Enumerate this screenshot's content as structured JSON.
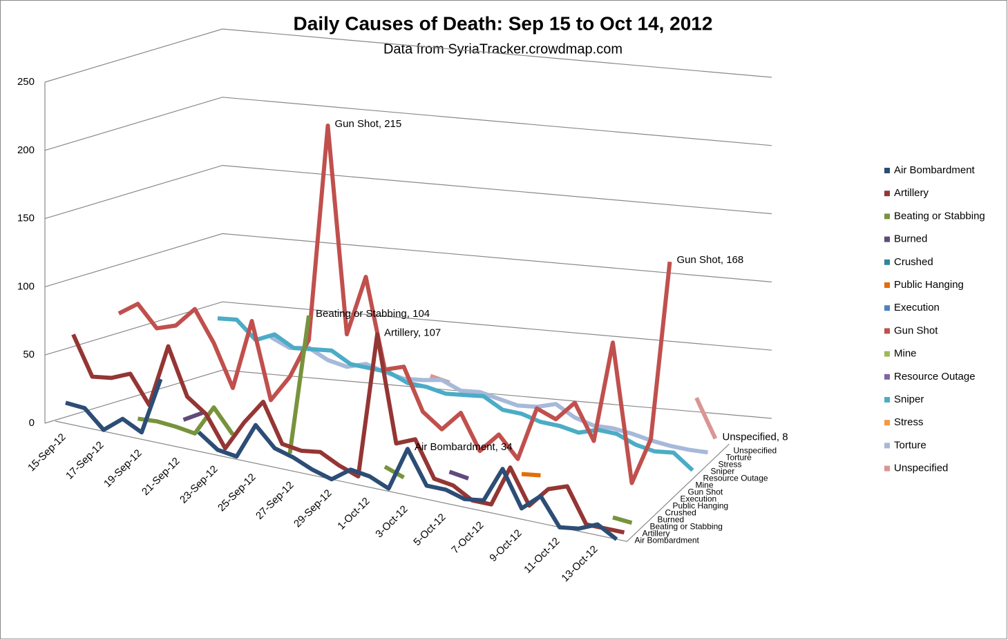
{
  "chart_data": {
    "type": "line3d",
    "title": "Daily Causes of Death: Sep 15 to Oct 14, 2012",
    "subtitle": "Data from SyriaTracker.crowdmap.com",
    "categories": [
      "15-Sep-12",
      null,
      "17-Sep-12",
      null,
      "19-Sep-12",
      null,
      "21-Sep-12",
      null,
      "23-Sep-12",
      null,
      "25-Sep-12",
      null,
      "27-Sep-12",
      null,
      "29-Sep-12",
      null,
      "1-Oct-12",
      null,
      "3-Oct-12",
      null,
      "5-Oct-12",
      null,
      "7-Oct-12",
      null,
      "9-Oct-12",
      null,
      "11-Oct-12",
      null,
      "13-Oct-12",
      null
    ],
    "ylim": [
      0,
      250
    ],
    "yticks": [
      0,
      50,
      100,
      150,
      200,
      250
    ],
    "grid": true,
    "series": [
      {
        "name": "Air Bombardment",
        "color": "#2c4d75",
        "values": [
          15,
          14,
          1,
          12,
          5,
          47,
          null,
          14,
          4,
          2,
          28,
          14,
          10,
          4,
          0,
          10,
          8,
          2,
          34,
          10,
          10,
          6,
          8,
          34,
          8,
          20,
          0,
          2,
          8,
          0
        ],
        "value_labels": [
          null,
          null,
          null,
          null,
          null,
          null,
          null,
          null,
          null,
          null,
          null,
          null,
          null,
          null,
          null,
          null,
          null,
          null,
          "Air Bombardment, 34",
          null,
          null,
          null,
          null,
          null,
          null,
          null,
          null,
          null,
          null,
          null
        ]
      },
      {
        "name": "Artillery",
        "color": "#943634",
        "values": [
          60,
          32,
          34,
          40,
          20,
          66,
          32,
          22,
          0,
          22,
          40,
          12,
          10,
          12,
          5,
          0,
          107,
          30,
          36,
          10,
          8,
          0,
          0,
          30,
          5,
          20,
          25,
          0,
          0,
          0
        ],
        "value_labels": [
          null,
          null,
          null,
          null,
          null,
          null,
          null,
          null,
          null,
          null,
          null,
          null,
          null,
          null,
          null,
          null,
          "Artillery, 107",
          null,
          null,
          null,
          null,
          null,
          null,
          null,
          null,
          null,
          null,
          null,
          null,
          null
        ]
      },
      {
        "name": "Beating or Stabbing",
        "color": "#77933c",
        "values": [
          null,
          null,
          null,
          2,
          3,
          2,
          0,
          22,
          5,
          null,
          null,
          0,
          104,
          null,
          null,
          null,
          5,
          0,
          null,
          null,
          null,
          null,
          null,
          null,
          null,
          null,
          null,
          null,
          3,
          2
        ],
        "value_labels": [
          null,
          null,
          null,
          null,
          null,
          null,
          null,
          null,
          null,
          null,
          null,
          null,
          "Beating or Stabbing, 104",
          null,
          null,
          null,
          null,
          null,
          null,
          null,
          null,
          null,
          null,
          null,
          null,
          null,
          null,
          null,
          null,
          null
        ]
      },
      {
        "name": "Burned",
        "color": "#604a7b",
        "values": [
          null,
          null,
          null,
          null,
          null,
          2,
          10,
          null,
          null,
          null,
          null,
          null,
          null,
          null,
          null,
          null,
          null,
          null,
          null,
          5,
          3,
          null,
          null,
          null,
          null,
          null,
          null,
          null,
          null,
          null
        ]
      },
      {
        "name": "Crushed",
        "color": "#31859c",
        "values": [
          null,
          null,
          null,
          null,
          null,
          null,
          null,
          null,
          null,
          null,
          null,
          null,
          null,
          null,
          null,
          null,
          null,
          null,
          null,
          null,
          null,
          null,
          null,
          null,
          null,
          null,
          null,
          null,
          null,
          null
        ]
      },
      {
        "name": "Public Hanging",
        "color": "#e46c0a",
        "values": [
          null,
          null,
          null,
          null,
          null,
          null,
          null,
          null,
          null,
          null,
          null,
          null,
          null,
          null,
          null,
          null,
          null,
          null,
          null,
          null,
          null,
          null,
          2,
          4,
          null,
          null,
          null,
          null,
          null,
          null
        ]
      },
      {
        "name": "Execution",
        "color": "#4f81bd",
        "values": [
          null,
          null,
          null,
          null,
          null,
          null,
          null,
          null,
          null,
          null,
          null,
          null,
          null,
          null,
          null,
          null,
          null,
          null,
          null,
          null,
          null,
          null,
          null,
          null,
          null,
          null,
          null,
          null,
          null,
          null
        ]
      },
      {
        "name": "Gun Shot",
        "color": "#c0504d",
        "values": [
          45,
          55,
          40,
          45,
          60,
          38,
          8,
          60,
          5,
          25,
          55,
          215,
          65,
          110,
          45,
          50,
          20,
          10,
          25,
          0,
          15,
          0,
          40,
          35,
          50,
          25,
          100,
          0,
          35,
          168
        ],
        "value_labels": [
          null,
          null,
          null,
          null,
          null,
          null,
          null,
          null,
          null,
          null,
          null,
          "Gun Shot, 215",
          null,
          null,
          null,
          null,
          null,
          null,
          null,
          null,
          null,
          null,
          null,
          null,
          null,
          null,
          null,
          null,
          null,
          "Gun Shot, 168"
        ]
      },
      {
        "name": "Mine",
        "color": "#9bbb59",
        "values": [
          null,
          null,
          null,
          null,
          null,
          null,
          null,
          null,
          null,
          null,
          null,
          null,
          null,
          null,
          null,
          null,
          null,
          null,
          null,
          null,
          null,
          null,
          null,
          null,
          null,
          null,
          null,
          null,
          null,
          null
        ]
      },
      {
        "name": "Resource Outage",
        "color": "#8064a2",
        "values": [
          null,
          null,
          null,
          null,
          null,
          null,
          null,
          null,
          null,
          null,
          null,
          null,
          null,
          null,
          null,
          null,
          null,
          null,
          null,
          null,
          null,
          null,
          null,
          null,
          null,
          null,
          null,
          null,
          null,
          null
        ]
      },
      {
        "name": "Sniper",
        "color": "#4bacc6",
        "values": [
          null,
          null,
          null,
          null,
          38,
          40,
          28,
          35,
          28,
          30,
          32,
          25,
          25,
          25,
          20,
          20,
          18,
          20,
          22,
          15,
          15,
          12,
          12,
          10,
          15,
          15,
          10,
          8,
          10,
          0
        ]
      },
      {
        "name": "Stress",
        "color": "#f79646",
        "values": [
          null,
          null,
          null,
          null,
          null,
          null,
          null,
          null,
          null,
          null,
          null,
          null,
          null,
          null,
          null,
          null,
          null,
          null,
          null,
          null,
          null,
          null,
          null,
          null,
          null,
          null,
          null,
          null,
          null,
          null
        ]
      },
      {
        "name": "Torture",
        "color": "#a7b9d9",
        "values": [
          null,
          null,
          null,
          null,
          null,
          null,
          20,
          15,
          18,
          12,
          10,
          15,
          12,
          10,
          12,
          15,
          10,
          12,
          10,
          8,
          10,
          15,
          8,
          5,
          6,
          5,
          3,
          2,
          2,
          3
        ]
      },
      {
        "name": "Unspecified",
        "color": "#d99694",
        "values": [
          null,
          null,
          null,
          null,
          null,
          null,
          null,
          null,
          null,
          null,
          null,
          null,
          null,
          null,
          10,
          8,
          null,
          null,
          null,
          null,
          null,
          null,
          null,
          null,
          null,
          null,
          null,
          null,
          35,
          8
        ],
        "value_labels": [
          null,
          null,
          null,
          null,
          null,
          null,
          null,
          null,
          null,
          null,
          null,
          null,
          null,
          null,
          null,
          null,
          null,
          null,
          null,
          null,
          null,
          null,
          null,
          null,
          null,
          null,
          null,
          null,
          null,
          "Unspecified, 8"
        ]
      }
    ]
  }
}
